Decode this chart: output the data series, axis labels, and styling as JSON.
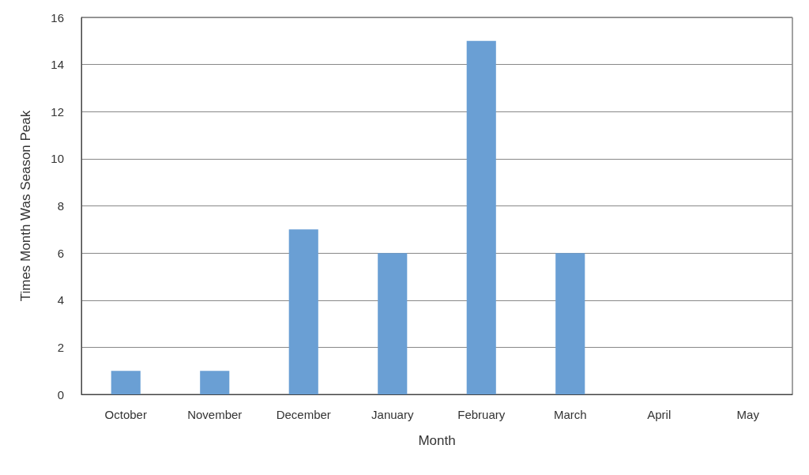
{
  "chart_data": {
    "type": "bar",
    "xlabel": "Month",
    "ylabel": "Times Month Was Season Peak",
    "categories": [
      "October",
      "November",
      "December",
      "January",
      "February",
      "March",
      "April",
      "May"
    ],
    "values": [
      1,
      1,
      7,
      6,
      15,
      6,
      0,
      0
    ],
    "color": "#6a9fd4",
    "ylim": [
      0,
      16
    ],
    "yticks": [
      0,
      2,
      4,
      6,
      8,
      10,
      12,
      14,
      16
    ],
    "grid": "y"
  }
}
